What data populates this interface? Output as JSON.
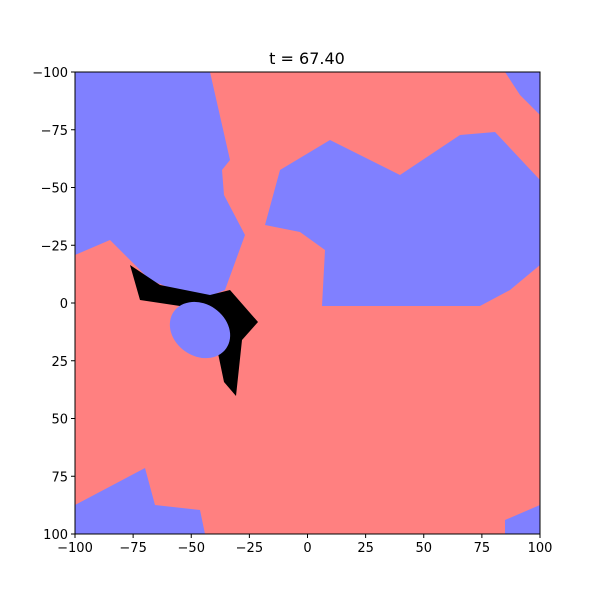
{
  "chart_data": {
    "type": "image",
    "title": "t = 67.40",
    "xlim": [
      -100,
      100
    ],
    "ylim": [
      100,
      -100
    ],
    "xticks": [
      {
        "value": -100,
        "label": "−100"
      },
      {
        "value": -75,
        "label": "−75"
      },
      {
        "value": -50,
        "label": "−50"
      },
      {
        "value": -25,
        "label": "−25"
      },
      0,
      25,
      50,
      75,
      100
    ],
    "yticks": [
      {
        "value": -100,
        "label": "−100"
      },
      {
        "value": -75,
        "label": "−75"
      },
      {
        "value": -50,
        "label": "−50"
      },
      {
        "value": -25,
        "label": "−25"
      },
      0,
      25,
      50,
      75,
      100
    ]
  }
}
